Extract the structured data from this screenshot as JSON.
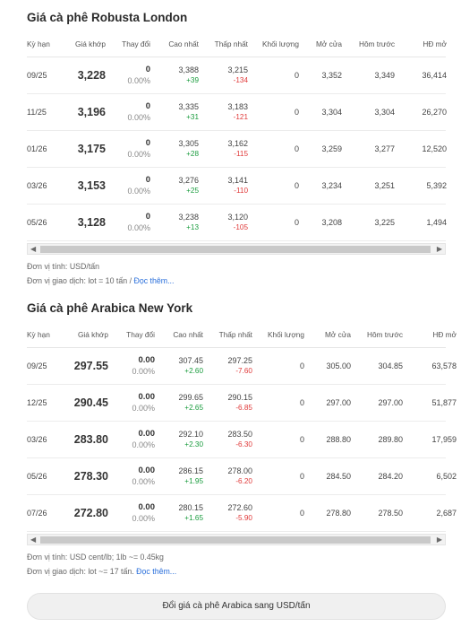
{
  "robusta": {
    "title": "Giá cà phê Robusta London",
    "headers": [
      "Kỳ hạn",
      "Giá khớp",
      "Thay đổi",
      "Cao nhất",
      "Thấp nhất",
      "Khối lượng",
      "Mở cửa",
      "Hôm trước",
      "HĐ mở"
    ],
    "rows": [
      {
        "term": "09/25",
        "price": "3,228",
        "change": "0",
        "change_pct": "0.00%",
        "high": "3,388",
        "high_diff": "+39",
        "low": "3,215",
        "low_diff": "-134",
        "volume": "0",
        "open": "3,352",
        "prev": "3,349",
        "oi": "36,414"
      },
      {
        "term": "11/25",
        "price": "3,196",
        "change": "0",
        "change_pct": "0.00%",
        "high": "3,335",
        "high_diff": "+31",
        "low": "3,183",
        "low_diff": "-121",
        "volume": "0",
        "open": "3,304",
        "prev": "3,304",
        "oi": "26,270"
      },
      {
        "term": "01/26",
        "price": "3,175",
        "change": "0",
        "change_pct": "0.00%",
        "high": "3,305",
        "high_diff": "+28",
        "low": "3,162",
        "low_diff": "-115",
        "volume": "0",
        "open": "3,259",
        "prev": "3,277",
        "oi": "12,520"
      },
      {
        "term": "03/26",
        "price": "3,153",
        "change": "0",
        "change_pct": "0.00%",
        "high": "3,276",
        "high_diff": "+25",
        "low": "3,141",
        "low_diff": "-110",
        "volume": "0",
        "open": "3,234",
        "prev": "3,251",
        "oi": "5,392"
      },
      {
        "term": "05/26",
        "price": "3,128",
        "change": "0",
        "change_pct": "0.00%",
        "high": "3,238",
        "high_diff": "+13",
        "low": "3,120",
        "low_diff": "-105",
        "volume": "0",
        "open": "3,208",
        "prev": "3,225",
        "oi": "1,494"
      }
    ],
    "unit_note": "Đơn vị tính: USD/tấn",
    "lot_note": "Đơn vị giao dịch: lot = 10 tấn / ",
    "read_more": "Đọc thêm..."
  },
  "arabica": {
    "title": "Giá cà phê Arabica New York",
    "headers": [
      "Kỳ hạn",
      "Giá khớp",
      "Thay đổi",
      "Cao nhất",
      "Thấp nhất",
      "Khối lượng",
      "Mở cửa",
      "Hôm trước",
      "HĐ mở"
    ],
    "rows": [
      {
        "term": "09/25",
        "price": "297.55",
        "change": "0.00",
        "change_pct": "0.00%",
        "high": "307.45",
        "high_diff": "+2.60",
        "low": "297.25",
        "low_diff": "-7.60",
        "volume": "0",
        "open": "305.00",
        "prev": "304.85",
        "oi": "63,578"
      },
      {
        "term": "12/25",
        "price": "290.45",
        "change": "0.00",
        "change_pct": "0.00%",
        "high": "299.65",
        "high_diff": "+2.65",
        "low": "290.15",
        "low_diff": "-6.85",
        "volume": "0",
        "open": "297.00",
        "prev": "297.00",
        "oi": "51,877"
      },
      {
        "term": "03/26",
        "price": "283.80",
        "change": "0.00",
        "change_pct": "0.00%",
        "high": "292.10",
        "high_diff": "+2.30",
        "low": "283.50",
        "low_diff": "-6.30",
        "volume": "0",
        "open": "288.80",
        "prev": "289.80",
        "oi": "17,959"
      },
      {
        "term": "05/26",
        "price": "278.30",
        "change": "0.00",
        "change_pct": "0.00%",
        "high": "286.15",
        "high_diff": "+1.95",
        "low": "278.00",
        "low_diff": "-6.20",
        "volume": "0",
        "open": "284.50",
        "prev": "284.20",
        "oi": "6,502"
      },
      {
        "term": "07/26",
        "price": "272.80",
        "change": "0.00",
        "change_pct": "0.00%",
        "high": "280.15",
        "high_diff": "+1.65",
        "low": "272.60",
        "low_diff": "-5.90",
        "volume": "0",
        "open": "278.80",
        "prev": "278.50",
        "oi": "2,687"
      }
    ],
    "unit_note": "Đơn vị tính: USD cent/lb; 1lb ~= 0.45kg",
    "lot_note": "Đơn vị giao dịch: lot ~= 17 tấn. ",
    "read_more": "Đọc thêm..."
  },
  "convert_button": "Đổi giá cà phê Arabica sang USD/tấn",
  "colors": {
    "up": "#1a9c3e",
    "down": "#e03a3a",
    "link": "#2a6fdb"
  },
  "icons": {
    "scroll_left": "triangle-left",
    "scroll_right": "triangle-right"
  }
}
